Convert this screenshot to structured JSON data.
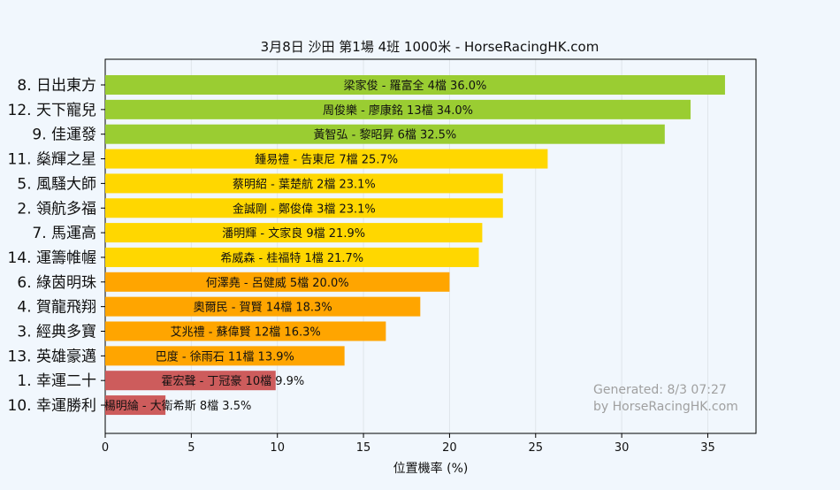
{
  "chart_data": {
    "type": "bar",
    "orientation": "horizontal",
    "title": "3月8日  沙田  第1場  4班  1000米 - HorseRacingHK.com",
    "xlabel": "位置機率 (%)",
    "ylabel": "",
    "xlim": [
      0,
      37.8
    ],
    "xticks": [
      "0",
      "5",
      "10",
      "15",
      "20",
      "25",
      "30",
      "35"
    ],
    "grid": "vertical",
    "categories": [
      "8. 日出東方",
      "12. 天下寵兒",
      "9. 佳運發",
      "11. 燊輝之星",
      "5. 風騷大師",
      "2. 領航多福",
      "7. 馬運高",
      "14. 運籌帷幄",
      "6. 綠茵明珠",
      "4. 賀龍飛翔",
      "3. 經典多寶",
      "13. 英雄豪邁",
      "1. 幸運二十",
      "10. 幸運勝利"
    ],
    "values": [
      36.0,
      34.0,
      32.5,
      25.7,
      23.1,
      23.1,
      21.9,
      21.7,
      20.0,
      18.3,
      16.3,
      13.9,
      9.9,
      3.5
    ],
    "bar_labels": [
      "梁家俊 - 羅富全 4檔  36.0%",
      "周俊樂 - 廖康銘 13檔  34.0%",
      "黃智弘 - 黎昭昇 6檔  32.5%",
      "鍾易禮 - 告東尼 7檔  25.7%",
      "蔡明紹 - 葉楚航 2檔  23.1%",
      "金誠剛 - 鄭俊偉 3檔  23.1%",
      "潘明輝 - 文家良 9檔  21.9%",
      "希威森 - 桂福特 1檔  21.7%",
      "何澤堯 - 呂健威 5檔  20.0%",
      "奧爾民 - 賀賢 14檔  18.3%",
      "艾兆禮 - 蘇偉賢 12檔  16.3%",
      "巴度 - 徐雨石 11檔  13.9%",
      "霍宏聲 - 丁冠豪 10檔  9.9%",
      "楊明綸 - 大衛希斯 8檔  3.5%"
    ],
    "colors": [
      "#9acd32",
      "#9acd32",
      "#9acd32",
      "#ffd700",
      "#ffd700",
      "#ffd700",
      "#ffd700",
      "#ffd700",
      "#ffa500",
      "#ffa500",
      "#ffa500",
      "#ffa500",
      "#cd5c5c",
      "#cd5c5c"
    ],
    "plot_background": "#f1f7fd",
    "annotation": [
      "Generated: 8/3 07:27",
      "by HorseRacingHK.com"
    ]
  }
}
